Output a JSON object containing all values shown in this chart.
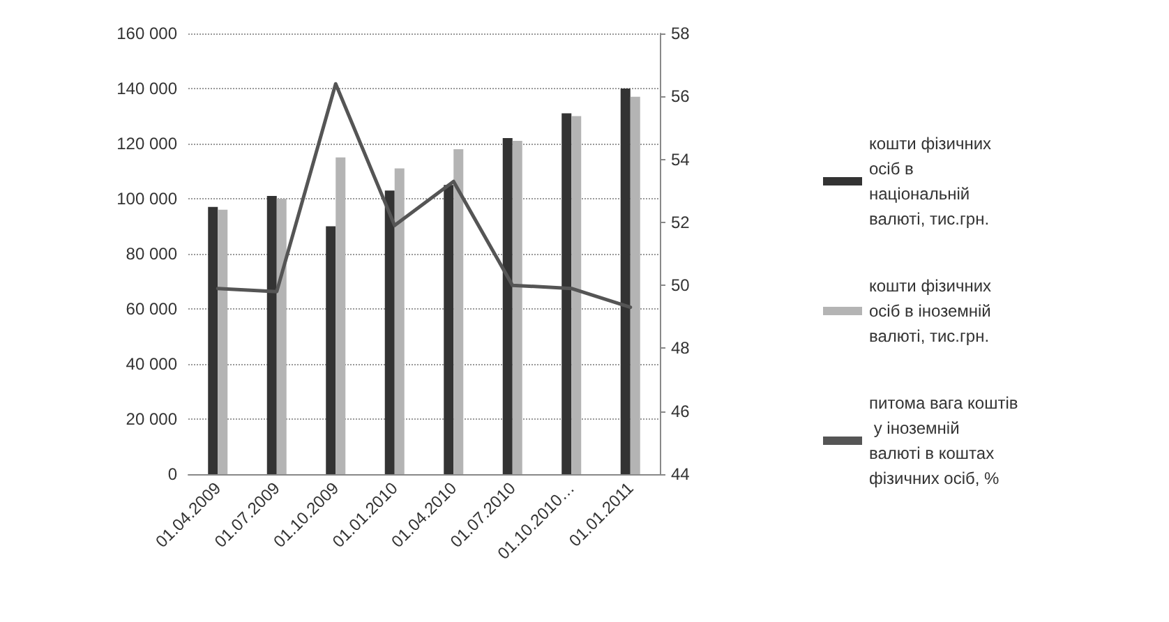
{
  "chart_data": {
    "type": "bar",
    "categories": [
      "01.04.2009",
      "01.07.2009",
      "01.10.2009",
      "01.01.2010",
      "01.04.2010",
      "01.07.2010",
      "01.10.2010…",
      "01.01.2011"
    ],
    "series": [
      {
        "name": "кошти фізичних осіб в національній валюті, тис.грн.",
        "color": "#333333",
        "values": [
          97000,
          101000,
          90000,
          103000,
          105000,
          122000,
          131000,
          140000
        ]
      },
      {
        "name": "кошти фізичних осіб в іноземній валюті, тис.грн.",
        "color": "#b4b4b4",
        "values": [
          96000,
          100000,
          115000,
          111000,
          118000,
          121000,
          130000,
          137000
        ]
      },
      {
        "name": "питома вага коштів у іноземній валюті в коштах фізичних осіб, %",
        "color": "#555555",
        "type": "line",
        "axis": "y2",
        "values": [
          49.9,
          49.8,
          56.4,
          51.9,
          53.3,
          50.0,
          49.9,
          49.3
        ]
      }
    ],
    "ylim": [
      0,
      160000
    ],
    "yticks": [
      {
        "value": 0,
        "label": "0"
      },
      {
        "value": 20000,
        "label": "20 000"
      },
      {
        "value": 40000,
        "label": "40 000"
      },
      {
        "value": 60000,
        "label": "60 000"
      },
      {
        "value": 80000,
        "label": "80 000"
      },
      {
        "value": 100000,
        "label": "100 000"
      },
      {
        "value": 120000,
        "label": "120 000"
      },
      {
        "value": 140000,
        "label": "140 000"
      },
      {
        "value": 160000,
        "label": "160 000"
      }
    ],
    "y2lim": [
      44,
      58
    ],
    "y2ticks": [
      44,
      46,
      48,
      50,
      52,
      54,
      56,
      58
    ],
    "grid": "y",
    "legend": "right",
    "marker": "none",
    "line_style": "solid"
  }
}
